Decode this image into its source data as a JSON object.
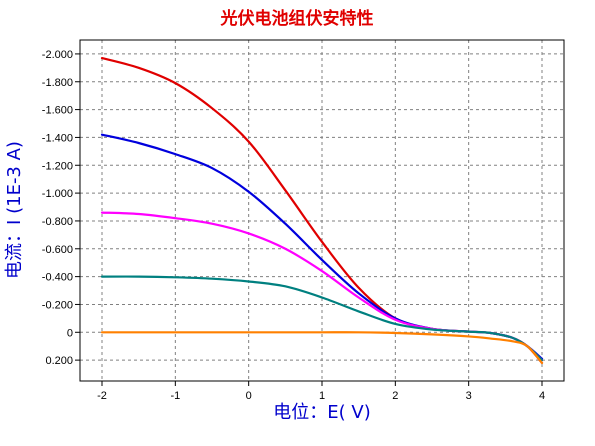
{
  "chart_data": {
    "type": "line",
    "title": "光伏电池组伏安特性",
    "xlabel": "电位：E( V)",
    "ylabel": "电流：I (1E-3 A)",
    "xlim": [
      -2.3,
      4.3
    ],
    "ylim": [
      0.35,
      -2.1
    ],
    "y_inverted": true,
    "grid": true,
    "x_ticks": [
      -2,
      -1,
      0,
      1,
      2,
      3,
      4
    ],
    "x_tick_labels": [
      "-2",
      "-1",
      "0",
      "1",
      "2",
      "3",
      "4"
    ],
    "y_ticks": [
      -2.0,
      -1.8,
      -1.6,
      -1.4,
      -1.2,
      -1.0,
      -0.8,
      -0.6,
      -0.4,
      -0.2,
      0,
      0.2
    ],
    "y_tick_labels": [
      "-2.000",
      "-1.800",
      "-1.600",
      "-1.400",
      "-1.200",
      "-1.000",
      "-0.800",
      "-0.600",
      "-0.400",
      "-0.200",
      "0",
      "0.200"
    ],
    "x": [
      -2.0,
      -1.5,
      -1.0,
      -0.5,
      0.0,
      0.5,
      1.0,
      1.5,
      2.0,
      2.5,
      3.0,
      3.3,
      3.6,
      3.8,
      4.0
    ],
    "series": [
      {
        "color": "#e00000",
        "values": [
          -1.97,
          -1.9,
          -1.79,
          -1.61,
          -1.37,
          -1.02,
          -0.65,
          -0.32,
          -0.1,
          -0.025,
          -0.005,
          0.005,
          0.04,
          0.1,
          0.22
        ]
      },
      {
        "color": "#0000dd",
        "values": [
          -1.42,
          -1.36,
          -1.28,
          -1.18,
          -1.01,
          -0.78,
          -0.52,
          -0.28,
          -0.1,
          -0.025,
          -0.005,
          0.005,
          0.04,
          0.1,
          0.19
        ]
      },
      {
        "color": "#ff00ff",
        "values": [
          -0.86,
          -0.85,
          -0.82,
          -0.78,
          -0.71,
          -0.6,
          -0.44,
          -0.25,
          -0.09,
          -0.025,
          -0.005,
          0.005,
          0.04,
          0.1,
          0.2
        ]
      },
      {
        "color": "#008080",
        "values": [
          -0.4,
          -0.4,
          -0.395,
          -0.385,
          -0.365,
          -0.33,
          -0.25,
          -0.15,
          -0.06,
          -0.02,
          -0.005,
          0.005,
          0.04,
          0.1,
          0.2
        ]
      },
      {
        "color": "#ff8000",
        "values": [
          0.0,
          0.0,
          0.0,
          0.0,
          0.0,
          0.0,
          0.0,
          0.0,
          0.005,
          0.015,
          0.03,
          0.045,
          0.065,
          0.1,
          0.22
        ]
      }
    ]
  }
}
